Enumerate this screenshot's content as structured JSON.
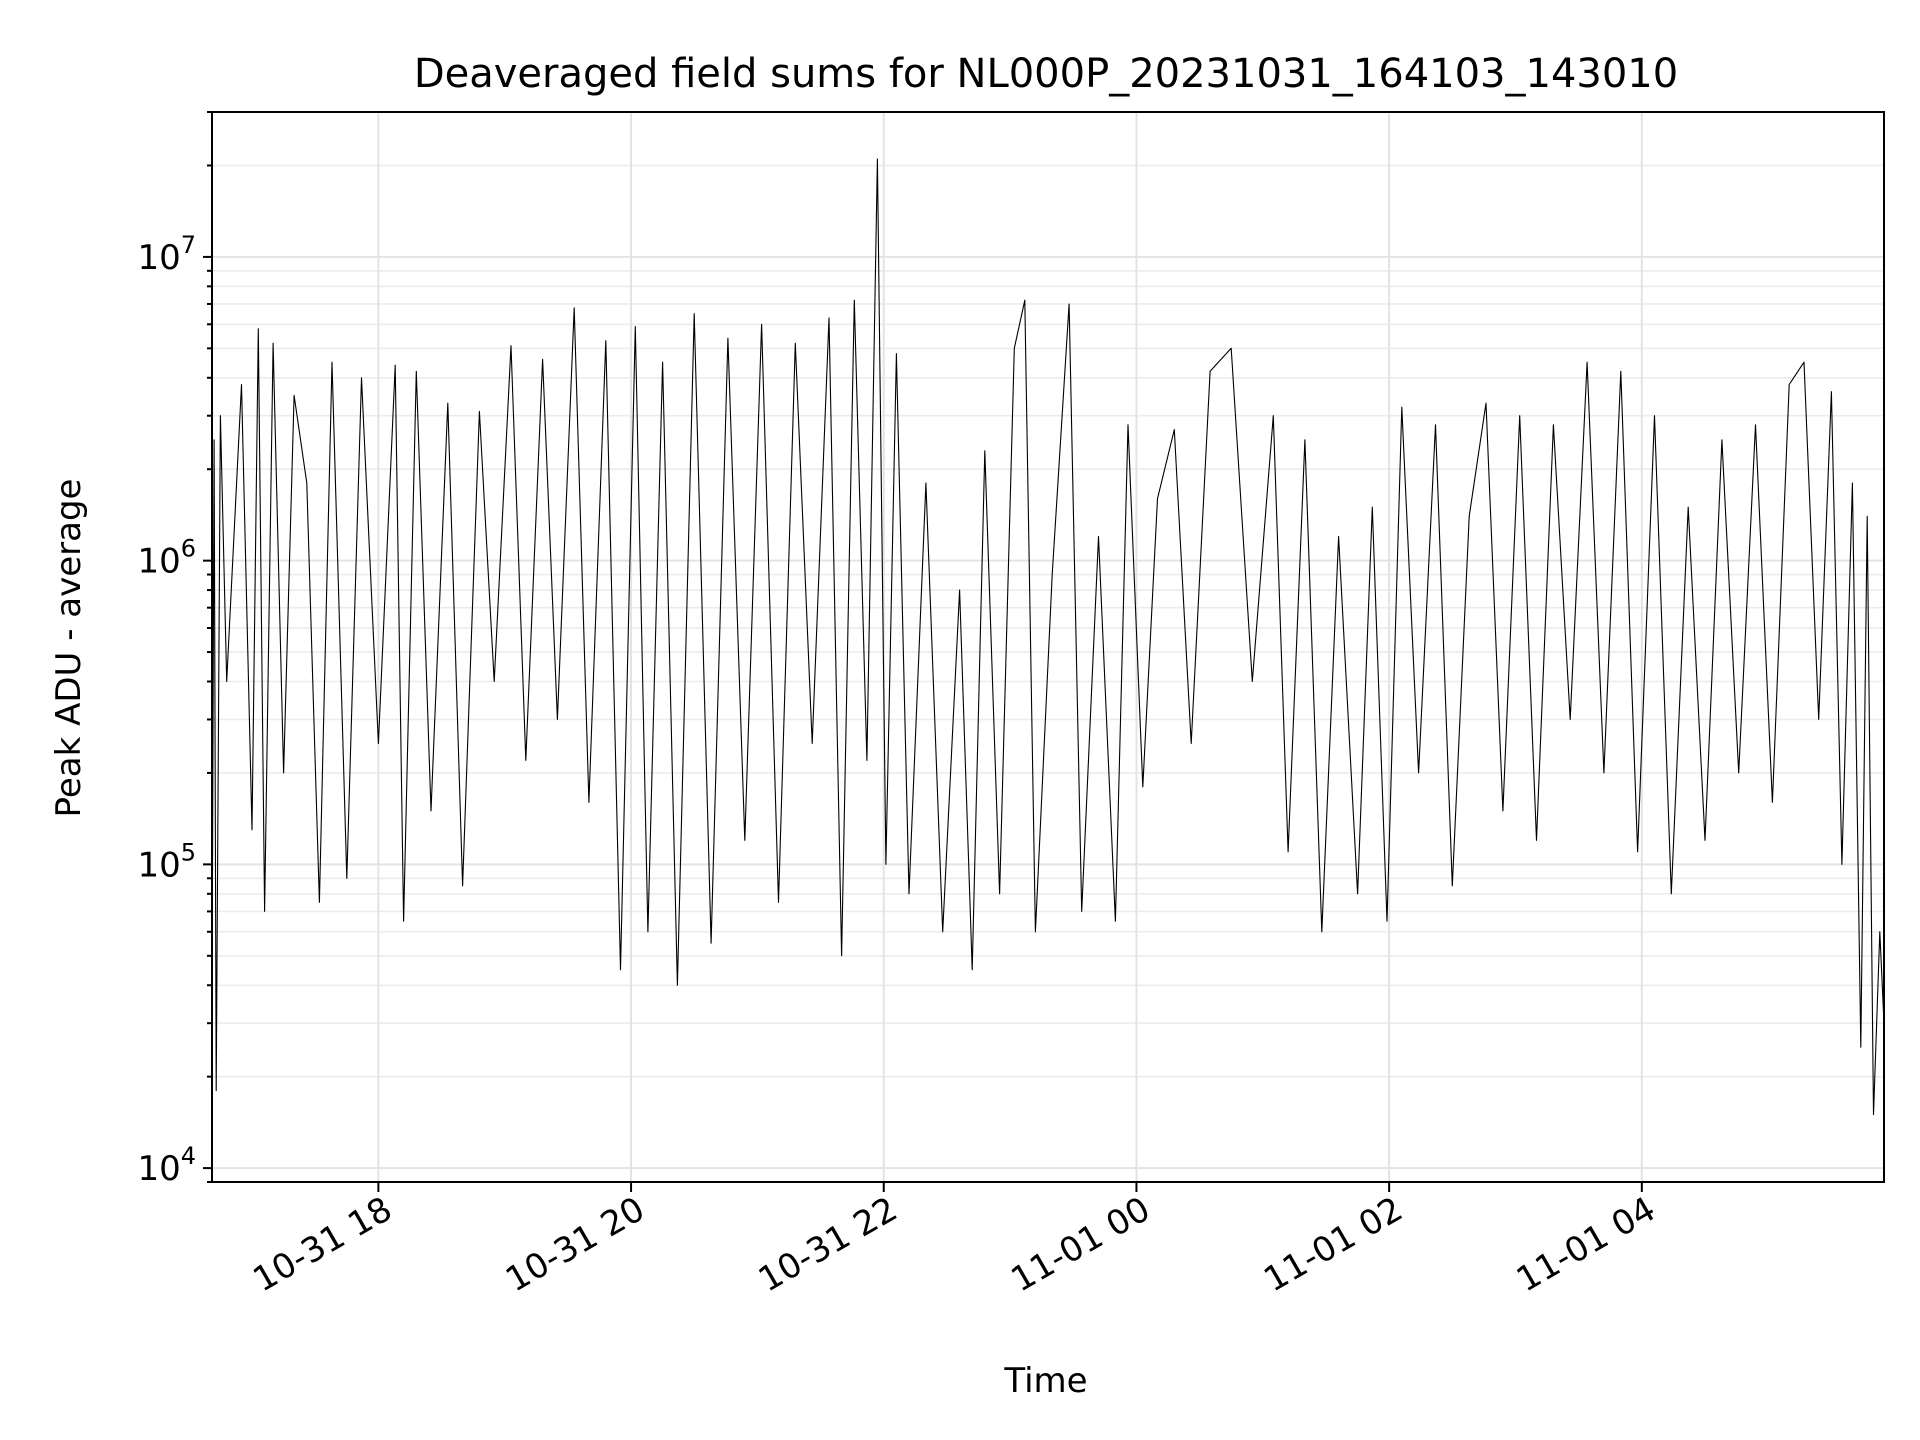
{
  "chart_data": {
    "type": "line",
    "title": "Deaveraged field sums for NL000P_20231031_164103_143010",
    "xlabel": "Time",
    "ylabel": "Peak ADU - average",
    "yscale": "log",
    "ylim": [
      9000,
      30000000
    ],
    "xlim": [
      "2023-10-31 16:41",
      "2023-11-01 05:55"
    ],
    "grid": true,
    "x_ticks": [
      {
        "value": "2023-10-31 18:00",
        "label": "10-31 18"
      },
      {
        "value": "2023-10-31 20:00",
        "label": "10-31 20"
      },
      {
        "value": "2023-10-31 22:00",
        "label": "10-31 22"
      },
      {
        "value": "2023-11-01 00:00",
        "label": "11-01 00"
      },
      {
        "value": "2023-11-01 02:00",
        "label": "11-01 02"
      },
      {
        "value": "2023-11-01 04:00",
        "label": "11-01 04"
      }
    ],
    "y_ticks": [
      {
        "value": 10000,
        "base": "10",
        "exp": "4"
      },
      {
        "value": 100000,
        "base": "10",
        "exp": "5"
      },
      {
        "value": 1000000,
        "base": "10",
        "exp": "6"
      },
      {
        "value": 10000000,
        "base": "10",
        "exp": "7"
      }
    ],
    "series": [
      {
        "color": "#000000",
        "points": [
          [
            "2023-10-31 16:41",
            35000
          ],
          [
            "2023-10-31 16:42",
            2500000
          ],
          [
            "2023-10-31 16:43",
            18000
          ],
          [
            "2023-10-31 16:45",
            3000000
          ],
          [
            "2023-10-31 16:48",
            400000
          ],
          [
            "2023-10-31 16:55",
            3800000
          ],
          [
            "2023-10-31 17:00",
            130000
          ],
          [
            "2023-10-31 17:03",
            5800000
          ],
          [
            "2023-10-31 17:06",
            70000
          ],
          [
            "2023-10-31 17:10",
            5200000
          ],
          [
            "2023-10-31 17:15",
            200000
          ],
          [
            "2023-10-31 17:20",
            3500000
          ],
          [
            "2023-10-31 17:26",
            1800000
          ],
          [
            "2023-10-31 17:32",
            75000
          ],
          [
            "2023-10-31 17:38",
            4500000
          ],
          [
            "2023-10-31 17:45",
            90000
          ],
          [
            "2023-10-31 17:52",
            4000000
          ],
          [
            "2023-10-31 18:00",
            250000
          ],
          [
            "2023-10-31 18:08",
            4400000
          ],
          [
            "2023-10-31 18:12",
            65000
          ],
          [
            "2023-10-31 18:18",
            4200000
          ],
          [
            "2023-10-31 18:25",
            150000
          ],
          [
            "2023-10-31 18:33",
            3300000
          ],
          [
            "2023-10-31 18:40",
            85000
          ],
          [
            "2023-10-31 18:48",
            3100000
          ],
          [
            "2023-10-31 18:55",
            400000
          ],
          [
            "2023-10-31 19:03",
            5100000
          ],
          [
            "2023-10-31 19:10",
            220000
          ],
          [
            "2023-10-31 19:18",
            4600000
          ],
          [
            "2023-10-31 19:25",
            300000
          ],
          [
            "2023-10-31 19:33",
            6800000
          ],
          [
            "2023-10-31 19:40",
            160000
          ],
          [
            "2023-10-31 19:48",
            5300000
          ],
          [
            "2023-10-31 19:55",
            45000
          ],
          [
            "2023-10-31 20:02",
            5900000
          ],
          [
            "2023-10-31 20:08",
            60000
          ],
          [
            "2023-10-31 20:15",
            4500000
          ],
          [
            "2023-10-31 20:22",
            40000
          ],
          [
            "2023-10-31 20:30",
            6500000
          ],
          [
            "2023-10-31 20:38",
            55000
          ],
          [
            "2023-10-31 20:46",
            5400000
          ],
          [
            "2023-10-31 20:54",
            120000
          ],
          [
            "2023-10-31 21:02",
            6000000
          ],
          [
            "2023-10-31 21:10",
            75000
          ],
          [
            "2023-10-31 21:18",
            5200000
          ],
          [
            "2023-10-31 21:26",
            250000
          ],
          [
            "2023-10-31 21:34",
            6300000
          ],
          [
            "2023-10-31 21:40",
            50000
          ],
          [
            "2023-10-31 21:46",
            7200000
          ],
          [
            "2023-10-31 21:52",
            220000
          ],
          [
            "2023-10-31 21:57",
            21000000
          ],
          [
            "2023-10-31 22:01",
            100000
          ],
          [
            "2023-10-31 22:06",
            4800000
          ],
          [
            "2023-10-31 22:12",
            80000
          ],
          [
            "2023-10-31 22:20",
            1800000
          ],
          [
            "2023-10-31 22:28",
            60000
          ],
          [
            "2023-10-31 22:36",
            800000
          ],
          [
            "2023-10-31 22:42",
            45000
          ],
          [
            "2023-10-31 22:48",
            2300000
          ],
          [
            "2023-10-31 22:55",
            80000
          ],
          [
            "2023-10-31 23:02",
            5000000
          ],
          [
            "2023-10-31 23:07",
            7200000
          ],
          [
            "2023-10-31 23:12",
            60000
          ],
          [
            "2023-10-31 23:20",
            900000
          ],
          [
            "2023-10-31 23:28",
            7000000
          ],
          [
            "2023-10-31 23:34",
            70000
          ],
          [
            "2023-10-31 23:42",
            1200000
          ],
          [
            "2023-10-31 23:50",
            65000
          ],
          [
            "2023-10-31 23:56",
            2800000
          ],
          [
            "2023-11-01 00:03",
            180000
          ],
          [
            "2023-11-01 00:10",
            1600000
          ],
          [
            "2023-11-01 00:18",
            2700000
          ],
          [
            "2023-11-01 00:26",
            250000
          ],
          [
            "2023-11-01 00:35",
            4200000
          ],
          [
            "2023-11-01 00:45",
            5000000
          ],
          [
            "2023-11-01 00:55",
            400000
          ],
          [
            "2023-11-01 01:05",
            3000000
          ],
          [
            "2023-11-01 01:12",
            110000
          ],
          [
            "2023-11-01 01:20",
            2500000
          ],
          [
            "2023-11-01 01:28",
            60000
          ],
          [
            "2023-11-01 01:36",
            1200000
          ],
          [
            "2023-11-01 01:45",
            80000
          ],
          [
            "2023-11-01 01:52",
            1500000
          ],
          [
            "2023-11-01 01:59",
            65000
          ],
          [
            "2023-11-01 02:06",
            3200000
          ],
          [
            "2023-11-01 02:14",
            200000
          ],
          [
            "2023-11-01 02:22",
            2800000
          ],
          [
            "2023-11-01 02:30",
            85000
          ],
          [
            "2023-11-01 02:38",
            1400000
          ],
          [
            "2023-11-01 02:46",
            3300000
          ],
          [
            "2023-11-01 02:54",
            150000
          ],
          [
            "2023-11-01 03:02",
            3000000
          ],
          [
            "2023-11-01 03:10",
            120000
          ],
          [
            "2023-11-01 03:18",
            2800000
          ],
          [
            "2023-11-01 03:26",
            300000
          ],
          [
            "2023-11-01 03:34",
            4500000
          ],
          [
            "2023-11-01 03:42",
            200000
          ],
          [
            "2023-11-01 03:50",
            4200000
          ],
          [
            "2023-11-01 03:58",
            110000
          ],
          [
            "2023-11-01 04:06",
            3000000
          ],
          [
            "2023-11-01 04:14",
            80000
          ],
          [
            "2023-11-01 04:22",
            1500000
          ],
          [
            "2023-11-01 04:30",
            120000
          ],
          [
            "2023-11-01 04:38",
            2500000
          ],
          [
            "2023-11-01 04:46",
            200000
          ],
          [
            "2023-11-01 04:54",
            2800000
          ],
          [
            "2023-11-01 05:02",
            160000
          ],
          [
            "2023-11-01 05:10",
            3800000
          ],
          [
            "2023-11-01 05:17",
            4500000
          ],
          [
            "2023-11-01 05:24",
            300000
          ],
          [
            "2023-11-01 05:30",
            3600000
          ],
          [
            "2023-11-01 05:35",
            100000
          ],
          [
            "2023-11-01 05:40",
            1800000
          ],
          [
            "2023-11-01 05:44",
            25000
          ],
          [
            "2023-11-01 05:47",
            1400000
          ],
          [
            "2023-11-01 05:50",
            15000
          ],
          [
            "2023-11-01 05:53",
            60000
          ],
          [
            "2023-11-01 05:55",
            30000
          ]
        ]
      }
    ]
  }
}
